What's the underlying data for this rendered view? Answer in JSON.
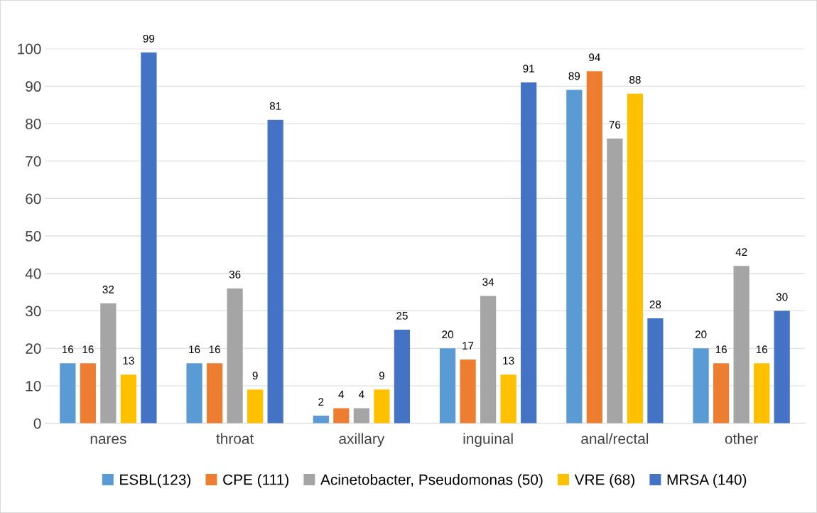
{
  "chart_data": {
    "type": "bar",
    "categories": [
      "nares",
      "throat",
      "axillary",
      "inguinal",
      "anal/rectal",
      "other"
    ],
    "series": [
      {
        "name": "ESBL(123)",
        "color": "#5b9bd5",
        "values": [
          16,
          16,
          2,
          20,
          89,
          20
        ]
      },
      {
        "name": "CPE (111)",
        "color": "#ed7d31",
        "values": [
          16,
          16,
          4,
          17,
          94,
          16
        ]
      },
      {
        "name": "Acinetobacter, Pseudomonas (50)",
        "color": "#a5a5a5",
        "values": [
          32,
          36,
          4,
          34,
          76,
          42
        ]
      },
      {
        "name": "VRE (68)",
        "color": "#ffc000",
        "values": [
          13,
          9,
          9,
          13,
          88,
          16
        ]
      },
      {
        "name": "MRSA (140)",
        "color": "#4472c4",
        "values": [
          99,
          81,
          25,
          91,
          28,
          30
        ]
      }
    ],
    "ylim": [
      0,
      100
    ],
    "yticks": [
      0,
      10,
      20,
      30,
      40,
      50,
      60,
      70,
      80,
      90,
      100
    ],
    "grid": "y",
    "legend": "bottom",
    "data_labels": true
  }
}
